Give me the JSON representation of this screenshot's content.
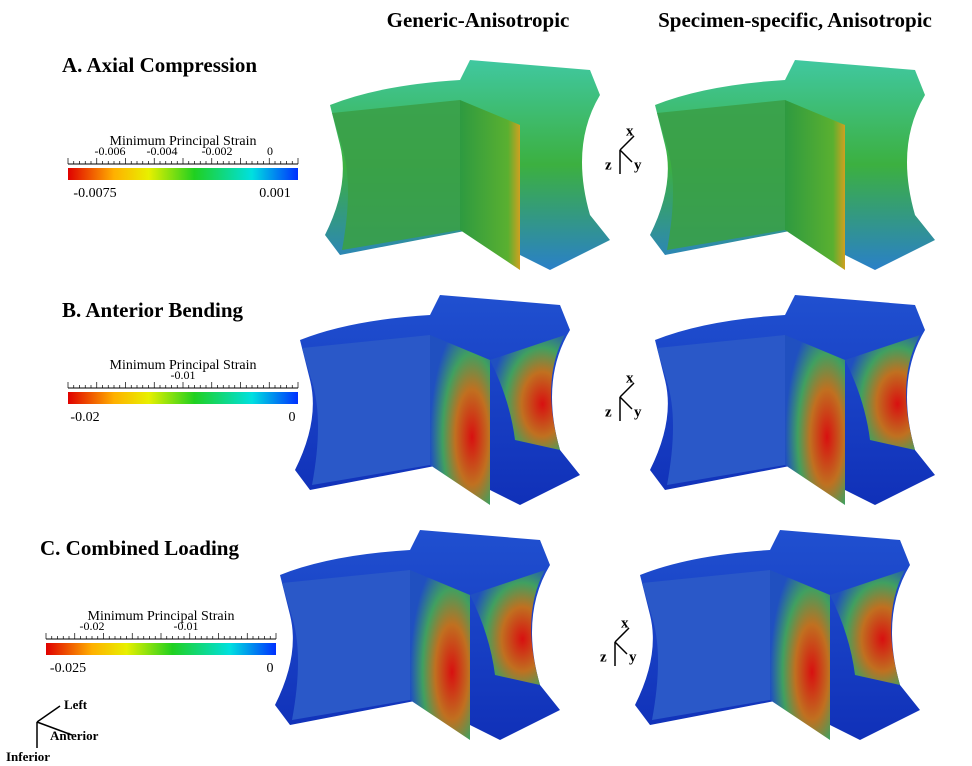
{
  "columns": [
    "Generic-Anisotropic",
    "Specimen-specific, Anisotropic"
  ],
  "rows": [
    {
      "title": "A. Axial Compression",
      "colorbar": {
        "title": "Minimum Principal Strain",
        "upper_labels": [
          "-0.006",
          "-0.004",
          "-0.002",
          "0"
        ],
        "lower_labels": [
          "-0.0075",
          "0.001"
        ]
      },
      "triad": {
        "x": "x",
        "y": "y",
        "z": "z"
      }
    },
    {
      "title": "B. Anterior Bending",
      "colorbar": {
        "title": "Minimum Principal Strain",
        "upper_labels": [
          "-0.01"
        ],
        "lower_labels": [
          "-0.02",
          "0"
        ]
      },
      "triad": {
        "x": "x",
        "y": "y",
        "z": "z"
      }
    },
    {
      "title": "C. Combined Loading",
      "colorbar": {
        "title": "Minimum Principal Strain",
        "upper_labels": [
          "-0.02",
          "-0.01"
        ],
        "lower_labels": [
          "-0.025",
          "0"
        ]
      },
      "triad": {
        "x": "x",
        "y": "y",
        "z": "z"
      }
    }
  ],
  "orientation": {
    "left": "Left",
    "anterior": "Anterior",
    "inferior": "Inferior"
  }
}
